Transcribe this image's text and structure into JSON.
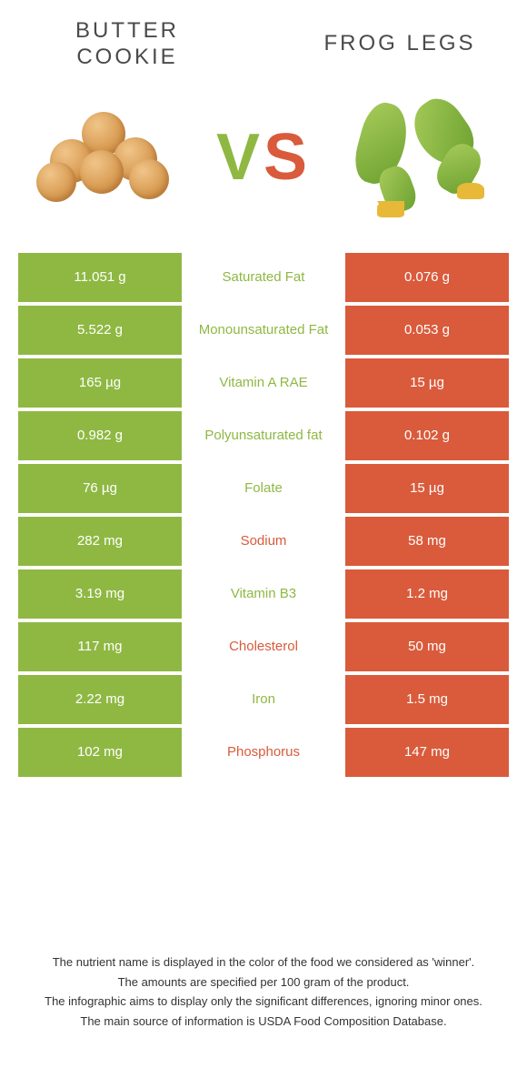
{
  "colors": {
    "left_bar": "#8fb843",
    "right_bar": "#d95b3b",
    "left_text": "#8fb843",
    "right_text": "#d95b3b",
    "title_text": "#4a4a4a",
    "white": "#ffffff"
  },
  "header": {
    "left_title_line1": "Butter",
    "left_title_line2": "cookie",
    "right_title": "Frog legs",
    "vs_v": "V",
    "vs_s": "S"
  },
  "rows": [
    {
      "left": "11.051 g",
      "label": "Saturated Fat",
      "right": "0.076 g",
      "winner": "left"
    },
    {
      "left": "5.522 g",
      "label": "Monounsaturated Fat",
      "right": "0.053 g",
      "winner": "left"
    },
    {
      "left": "165 µg",
      "label": "Vitamin A RAE",
      "right": "15 µg",
      "winner": "left"
    },
    {
      "left": "0.982 g",
      "label": "Polyunsaturated fat",
      "right": "0.102 g",
      "winner": "left"
    },
    {
      "left": "76 µg",
      "label": "Folate",
      "right": "15 µg",
      "winner": "left"
    },
    {
      "left": "282 mg",
      "label": "Sodium",
      "right": "58 mg",
      "winner": "right"
    },
    {
      "left": "3.19 mg",
      "label": "Vitamin B3",
      "right": "1.2 mg",
      "winner": "left"
    },
    {
      "left": "117 mg",
      "label": "Cholesterol",
      "right": "50 mg",
      "winner": "right"
    },
    {
      "left": "2.22 mg",
      "label": "Iron",
      "right": "1.5 mg",
      "winner": "left"
    },
    {
      "left": "102 mg",
      "label": "Phosphorus",
      "right": "147 mg",
      "winner": "right"
    }
  ],
  "footer": {
    "line1": "The nutrient name is displayed in the color of the food we considered as 'winner'.",
    "line2": "The amounts are specified per 100 gram of the product.",
    "line3": "The infographic aims to display only the significant differences, ignoring minor ones.",
    "line4": "The main source of information is USDA Food Composition Database."
  }
}
